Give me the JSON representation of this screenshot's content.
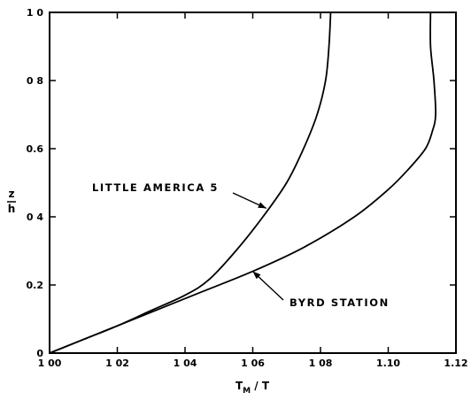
{
  "chart_data": {
    "type": "line",
    "title": "",
    "xlabel_main": "T",
    "xlabel_sub": "M",
    "xlabel_rest": " / T",
    "ylabel_num": "z",
    "ylabel_den": "h",
    "xlim": [
      1.0,
      1.12
    ],
    "ylim": [
      0,
      1.0
    ],
    "xticks": [
      1.0,
      1.02,
      1.04,
      1.06,
      1.08,
      1.1,
      1.12
    ],
    "xtick_labels": [
      "1 00",
      "1 02",
      "1 04",
      "1 06",
      "1 08",
      "1.10",
      "1.12"
    ],
    "yticks": [
      0,
      0.2,
      0.4,
      0.6,
      0.8,
      1.0
    ],
    "ytick_labels": [
      "0",
      "0.2",
      "0 4",
      "0.6",
      "0 8",
      "1 0"
    ],
    "grid": false,
    "series": [
      {
        "name": "LITTLE AMERICA 5",
        "x": [
          1.0,
          1.01,
          1.02,
          1.03,
          1.04,
          1.047,
          1.055,
          1.063,
          1.07,
          1.075,
          1.079,
          1.0815,
          1.0825,
          1.083
        ],
        "y": [
          0.0,
          0.04,
          0.08,
          0.125,
          0.17,
          0.215,
          0.3,
          0.4,
          0.5,
          0.6,
          0.7,
          0.8,
          0.9,
          1.0
        ]
      },
      {
        "name": "BYRD STATION",
        "x": [
          1.0,
          1.015,
          1.03,
          1.045,
          1.06,
          1.075,
          1.09,
          1.1,
          1.106,
          1.111,
          1.113,
          1.114,
          1.1135,
          1.1125,
          1.1125
        ],
        "y": [
          0.0,
          0.06,
          0.12,
          0.18,
          0.24,
          0.31,
          0.4,
          0.48,
          0.54,
          0.6,
          0.65,
          0.7,
          0.8,
          0.9,
          1.0
        ]
      }
    ],
    "annotations": [
      {
        "text": "LITTLE AMERICA 5",
        "series": 0,
        "point": [
          1.064,
          0.425
        ]
      },
      {
        "text": "BYRD STATION",
        "series": 1,
        "point": [
          1.06,
          0.24
        ]
      }
    ]
  }
}
